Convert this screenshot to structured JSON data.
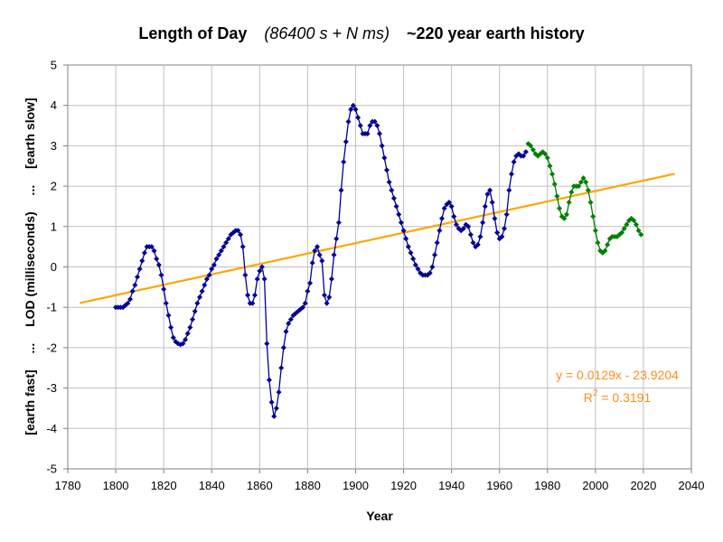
{
  "chart_data": {
    "type": "scatter",
    "title": {
      "part1": "Length of Day",
      "part2": "(86400 s + N ms)",
      "part3": "~220 year earth history"
    },
    "xlabel": "Year",
    "ylabel": {
      "left": "[earth fast]",
      "sep1": "...",
      "middle": "LOD (milliseconds)",
      "sep2": "...",
      "right": "[earth slow]"
    },
    "xlim": [
      1780,
      2040
    ],
    "ylim": [
      -5,
      5
    ],
    "x_ticks": [
      1780,
      1800,
      1820,
      1840,
      1860,
      1880,
      1900,
      1920,
      1940,
      1960,
      1980,
      2000,
      2020,
      2040
    ],
    "y_ticks": [
      5,
      4,
      3,
      2,
      1,
      0,
      -1,
      -2,
      -3,
      -4,
      -5
    ],
    "grid": true,
    "series": [
      {
        "color": "#000099",
        "marker": "diamond",
        "points": [
          [
            1800,
            -1.0
          ],
          [
            1801,
            -1.0
          ],
          [
            1802,
            -1.0
          ],
          [
            1803,
            -1.0
          ],
          [
            1804,
            -0.95
          ],
          [
            1805,
            -0.9
          ],
          [
            1806,
            -0.8
          ],
          [
            1807,
            -0.6
          ],
          [
            1808,
            -0.45
          ],
          [
            1809,
            -0.25
          ],
          [
            1810,
            -0.05
          ],
          [
            1811,
            0.15
          ],
          [
            1812,
            0.35
          ],
          [
            1813,
            0.5
          ],
          [
            1814,
            0.5
          ],
          [
            1815,
            0.5
          ],
          [
            1816,
            0.4
          ],
          [
            1817,
            0.2
          ],
          [
            1818,
            0.05
          ],
          [
            1819,
            -0.2
          ],
          [
            1820,
            -0.55
          ],
          [
            1821,
            -0.9
          ],
          [
            1822,
            -1.2
          ],
          [
            1823,
            -1.5
          ],
          [
            1824,
            -1.75
          ],
          [
            1825,
            -1.85
          ],
          [
            1826,
            -1.9
          ],
          [
            1827,
            -1.92
          ],
          [
            1828,
            -1.9
          ],
          [
            1829,
            -1.8
          ],
          [
            1830,
            -1.65
          ],
          [
            1831,
            -1.5
          ],
          [
            1832,
            -1.3
          ],
          [
            1833,
            -1.1
          ],
          [
            1834,
            -0.9
          ],
          [
            1835,
            -0.75
          ],
          [
            1836,
            -0.6
          ],
          [
            1837,
            -0.45
          ],
          [
            1838,
            -0.3
          ],
          [
            1839,
            -0.2
          ],
          [
            1840,
            -0.05
          ],
          [
            1841,
            0.05
          ],
          [
            1842,
            0.2
          ],
          [
            1843,
            0.3
          ],
          [
            1844,
            0.4
          ],
          [
            1845,
            0.5
          ],
          [
            1846,
            0.6
          ],
          [
            1847,
            0.7
          ],
          [
            1848,
            0.8
          ],
          [
            1849,
            0.85
          ],
          [
            1850,
            0.9
          ],
          [
            1851,
            0.9
          ],
          [
            1852,
            0.8
          ],
          [
            1853,
            0.5
          ],
          [
            1854,
            -0.2
          ],
          [
            1855,
            -0.7
          ],
          [
            1856,
            -0.9
          ],
          [
            1857,
            -0.9
          ],
          [
            1858,
            -0.7
          ],
          [
            1859,
            -0.3
          ],
          [
            1860,
            -0.1
          ],
          [
            1861,
            0.0
          ],
          [
            1862,
            -0.3
          ],
          [
            1863,
            -1.9
          ],
          [
            1864,
            -2.8
          ],
          [
            1865,
            -3.35
          ],
          [
            1866,
            -3.7
          ],
          [
            1867,
            -3.5
          ],
          [
            1868,
            -3.1
          ],
          [
            1869,
            -2.5
          ],
          [
            1870,
            -2.0
          ],
          [
            1871,
            -1.6
          ],
          [
            1872,
            -1.4
          ],
          [
            1873,
            -1.3
          ],
          [
            1874,
            -1.2
          ],
          [
            1875,
            -1.15
          ],
          [
            1876,
            -1.1
          ],
          [
            1877,
            -1.05
          ],
          [
            1878,
            -1.0
          ],
          [
            1879,
            -0.9
          ],
          [
            1880,
            -0.6
          ],
          [
            1881,
            -0.4
          ],
          [
            1882,
            0.1
          ],
          [
            1883,
            0.4
          ],
          [
            1884,
            0.5
          ],
          [
            1885,
            0.3
          ],
          [
            1886,
            0.15
          ],
          [
            1887,
            -0.7
          ],
          [
            1888,
            -0.9
          ],
          [
            1889,
            -0.75
          ],
          [
            1890,
            -0.3
          ],
          [
            1891,
            0.3
          ],
          [
            1892,
            0.7
          ],
          [
            1893,
            1.1
          ],
          [
            1894,
            1.9
          ],
          [
            1895,
            2.6
          ],
          [
            1896,
            3.1
          ],
          [
            1897,
            3.6
          ],
          [
            1898,
            3.9
          ],
          [
            1899,
            4.0
          ],
          [
            1900,
            3.9
          ],
          [
            1901,
            3.7
          ],
          [
            1902,
            3.5
          ],
          [
            1903,
            3.3
          ],
          [
            1904,
            3.3
          ],
          [
            1905,
            3.3
          ],
          [
            1906,
            3.5
          ],
          [
            1907,
            3.6
          ],
          [
            1908,
            3.6
          ],
          [
            1909,
            3.5
          ],
          [
            1910,
            3.3
          ],
          [
            1911,
            3.0
          ],
          [
            1912,
            2.7
          ],
          [
            1913,
            2.4
          ],
          [
            1914,
            2.1
          ],
          [
            1915,
            1.9
          ],
          [
            1916,
            1.7
          ],
          [
            1917,
            1.5
          ],
          [
            1918,
            1.3
          ],
          [
            1919,
            1.1
          ],
          [
            1920,
            0.9
          ],
          [
            1921,
            0.7
          ],
          [
            1922,
            0.5
          ],
          [
            1923,
            0.35
          ],
          [
            1924,
            0.2
          ],
          [
            1925,
            0.05
          ],
          [
            1926,
            -0.05
          ],
          [
            1927,
            -0.15
          ],
          [
            1928,
            -0.2
          ],
          [
            1929,
            -0.2
          ],
          [
            1930,
            -0.2
          ],
          [
            1931,
            -0.15
          ],
          [
            1932,
            0.0
          ],
          [
            1933,
            0.3
          ],
          [
            1934,
            0.6
          ],
          [
            1935,
            0.9
          ],
          [
            1936,
            1.2
          ],
          [
            1937,
            1.45
          ],
          [
            1938,
            1.55
          ],
          [
            1939,
            1.6
          ],
          [
            1940,
            1.5
          ],
          [
            1941,
            1.25
          ],
          [
            1942,
            1.05
          ],
          [
            1943,
            0.95
          ],
          [
            1944,
            0.9
          ],
          [
            1945,
            0.95
          ],
          [
            1946,
            1.05
          ],
          [
            1947,
            1.0
          ],
          [
            1948,
            0.8
          ],
          [
            1949,
            0.6
          ],
          [
            1950,
            0.5
          ],
          [
            1951,
            0.55
          ],
          [
            1952,
            0.75
          ],
          [
            1953,
            1.1
          ],
          [
            1954,
            1.5
          ],
          [
            1955,
            1.8
          ],
          [
            1956,
            1.9
          ],
          [
            1957,
            1.6
          ],
          [
            1958,
            1.2
          ],
          [
            1959,
            0.85
          ],
          [
            1960,
            0.7
          ],
          [
            1961,
            0.75
          ],
          [
            1962,
            0.95
          ],
          [
            1963,
            1.3
          ],
          [
            1964,
            1.9
          ],
          [
            1965,
            2.3
          ],
          [
            1966,
            2.6
          ],
          [
            1967,
            2.75
          ],
          [
            1968,
            2.8
          ],
          [
            1969,
            2.75
          ],
          [
            1970,
            2.75
          ],
          [
            1971,
            2.85
          ]
        ]
      },
      {
        "color": "#008000",
        "marker": "diamond",
        "points": [
          [
            1972,
            3.05
          ],
          [
            1973,
            3.0
          ],
          [
            1974,
            2.9
          ],
          [
            1975,
            2.8
          ],
          [
            1976,
            2.75
          ],
          [
            1977,
            2.8
          ],
          [
            1978,
            2.85
          ],
          [
            1979,
            2.8
          ],
          [
            1980,
            2.7
          ],
          [
            1981,
            2.5
          ],
          [
            1982,
            2.3
          ],
          [
            1983,
            2.05
          ],
          [
            1984,
            1.75
          ],
          [
            1985,
            1.45
          ],
          [
            1986,
            1.25
          ],
          [
            1987,
            1.2
          ],
          [
            1988,
            1.3
          ],
          [
            1989,
            1.6
          ],
          [
            1990,
            1.85
          ],
          [
            1991,
            2.0
          ],
          [
            1992,
            2.0
          ],
          [
            1993,
            2.0
          ],
          [
            1994,
            2.1
          ],
          [
            1995,
            2.2
          ],
          [
            1996,
            2.1
          ],
          [
            1997,
            1.9
          ],
          [
            1998,
            1.6
          ],
          [
            1999,
            1.25
          ],
          [
            2000,
            0.9
          ],
          [
            2001,
            0.6
          ],
          [
            2002,
            0.4
          ],
          [
            2003,
            0.35
          ],
          [
            2004,
            0.4
          ],
          [
            2005,
            0.55
          ],
          [
            2006,
            0.7
          ],
          [
            2007,
            0.75
          ],
          [
            2008,
            0.75
          ],
          [
            2009,
            0.75
          ],
          [
            2010,
            0.8
          ],
          [
            2011,
            0.85
          ],
          [
            2012,
            0.95
          ],
          [
            2013,
            1.05
          ],
          [
            2014,
            1.15
          ],
          [
            2015,
            1.2
          ],
          [
            2016,
            1.15
          ],
          [
            2017,
            1.05
          ],
          [
            2018,
            0.9
          ],
          [
            2019,
            0.8
          ]
        ]
      }
    ],
    "trendline": {
      "color": "#ffa500",
      "slope": 0.0129,
      "intercept": -23.9204,
      "x_range": [
        1785,
        2033
      ],
      "equation": "y = 0.0129x - 23.9204",
      "r2_label": "R",
      "r2_exp": "2",
      "r2_value": " = 0.3191"
    }
  }
}
